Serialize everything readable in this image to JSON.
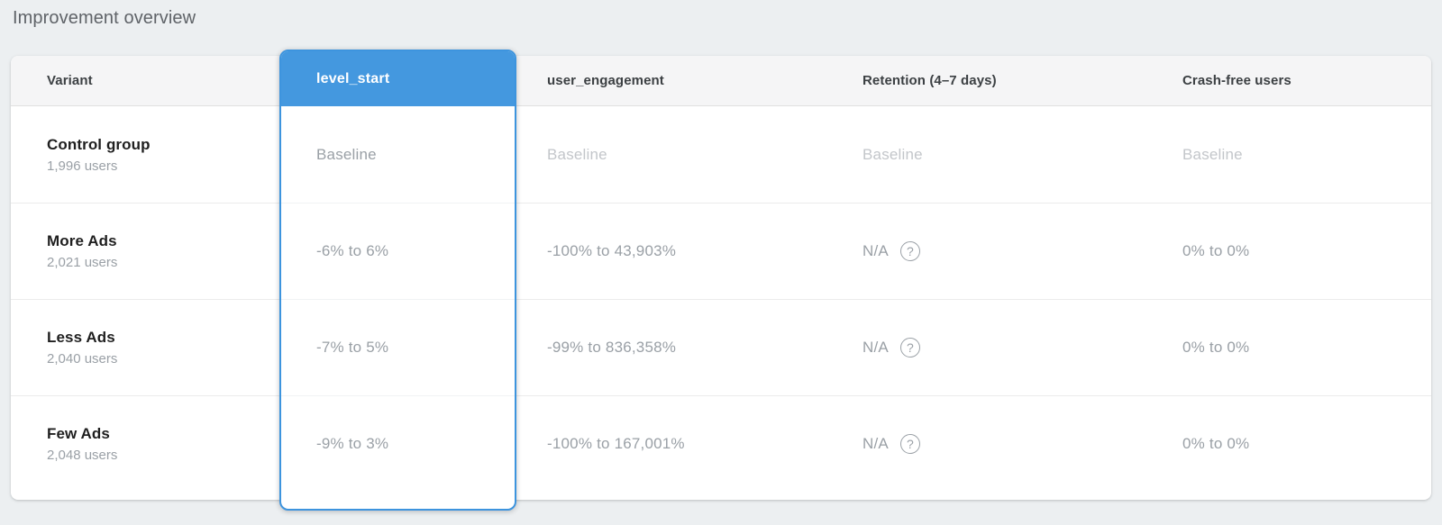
{
  "page": {
    "title": "Improvement overview"
  },
  "colors": {
    "page_background": "#eceff1",
    "selected_accent": "#4498df",
    "selected_border": "#3d94de"
  },
  "icons": {
    "help_glyph": "?"
  },
  "table": {
    "columns": [
      {
        "label": "Variant",
        "selected": false
      },
      {
        "label": "level_start",
        "selected": true
      },
      {
        "label": "user_engagement",
        "selected": false
      },
      {
        "label": "Retention (4–7 days)",
        "selected": false
      },
      {
        "label": "Crash-free users",
        "selected": false
      }
    ],
    "rows": [
      {
        "variant": "Control group",
        "users": "1,996 users",
        "level_start": "Baseline",
        "user_engagement": "Baseline",
        "retention": "Baseline",
        "crash_free": "Baseline"
      },
      {
        "variant": "More Ads",
        "users": "2,021 users",
        "level_start": "-6% to 6%",
        "user_engagement": "-100% to 43,903%",
        "retention": "N/A",
        "crash_free": "0% to 0%"
      },
      {
        "variant": "Less Ads",
        "users": "2,040 users",
        "level_start": "-7% to 5%",
        "user_engagement": "-99% to 836,358%",
        "retention": "N/A",
        "crash_free": "0% to 0%"
      },
      {
        "variant": "Few Ads",
        "users": "2,048 users",
        "level_start": "-9% to 3%",
        "user_engagement": "-100% to 167,001%",
        "retention": "N/A",
        "crash_free": "0% to 0%"
      }
    ]
  }
}
